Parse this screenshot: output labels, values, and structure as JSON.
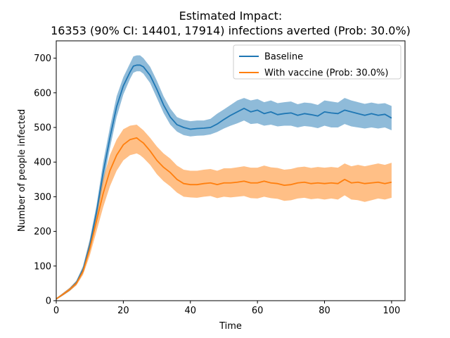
{
  "chart_data": {
    "type": "line",
    "title_line1": "Estimated Impact:",
    "title_line2": "16353 (90% CI: 14401, 17914) infections averted (Prob: 30.0%)",
    "xlabel": "Time",
    "ylabel": "Number of people infected",
    "xlim": [
      0,
      104
    ],
    "ylim": [
      0,
      750
    ],
    "xticks": [
      0,
      20,
      40,
      60,
      80,
      100
    ],
    "yticks": [
      0,
      100,
      200,
      300,
      400,
      500,
      600,
      700
    ],
    "legend_position": "top-right",
    "series": [
      {
        "name": "Baseline",
        "color": "#1f77b4",
        "band_color": "#1f77b4",
        "x": [
          0,
          2,
          4,
          6,
          8,
          10,
          12,
          14,
          16,
          18,
          20,
          22,
          23,
          24,
          25,
          26,
          28,
          30,
          32,
          34,
          36,
          38,
          40,
          42,
          44,
          46,
          48,
          50,
          52,
          54,
          56,
          58,
          60,
          62,
          64,
          66,
          68,
          70,
          72,
          74,
          76,
          78,
          80,
          82,
          84,
          86,
          88,
          90,
          92,
          94,
          96,
          98,
          100
        ],
        "values": [
          5,
          18,
          32,
          52,
          90,
          160,
          255,
          370,
          470,
          560,
          620,
          660,
          677,
          680,
          680,
          675,
          650,
          610,
          565,
          530,
          508,
          500,
          495,
          497,
          498,
          500,
          510,
          523,
          535,
          545,
          555,
          545,
          550,
          540,
          545,
          537,
          540,
          542,
          535,
          540,
          537,
          533,
          545,
          542,
          540,
          550,
          545,
          540,
          535,
          540,
          535,
          538,
          527
        ],
        "lower": [
          3,
          15,
          28,
          46,
          80,
          145,
          235,
          340,
          440,
          530,
          595,
          640,
          658,
          662,
          662,
          655,
          628,
          585,
          542,
          508,
          488,
          478,
          474,
          476,
          477,
          480,
          487,
          497,
          505,
          512,
          520,
          510,
          512,
          505,
          508,
          503,
          505,
          505,
          500,
          504,
          502,
          498,
          505,
          500,
          500,
          510,
          503,
          500,
          497,
          500,
          497,
          500,
          492
        ],
        "upper": [
          7,
          22,
          37,
          58,
          100,
          177,
          275,
          400,
          500,
          590,
          645,
          685,
          705,
          708,
          708,
          700,
          675,
          635,
          590,
          555,
          530,
          522,
          518,
          520,
          520,
          525,
          540,
          552,
          565,
          578,
          585,
          578,
          582,
          573,
          578,
          570,
          573,
          575,
          567,
          572,
          570,
          565,
          578,
          575,
          572,
          585,
          578,
          573,
          568,
          572,
          568,
          570,
          562
        ]
      },
      {
        "name": "With vaccine (Prob: 30.0%)",
        "color": "#ff7f0e",
        "band_color": "#ff7f0e",
        "x": [
          0,
          2,
          4,
          6,
          8,
          10,
          12,
          14,
          16,
          18,
          20,
          22,
          24,
          25,
          26,
          28,
          30,
          32,
          34,
          36,
          38,
          40,
          42,
          44,
          46,
          48,
          50,
          52,
          54,
          56,
          58,
          60,
          62,
          64,
          66,
          68,
          70,
          72,
          74,
          76,
          78,
          80,
          82,
          84,
          86,
          88,
          90,
          92,
          94,
          96,
          98,
          100
        ],
        "values": [
          5,
          18,
          32,
          50,
          85,
          150,
          230,
          310,
          375,
          420,
          450,
          465,
          470,
          462,
          455,
          432,
          405,
          385,
          370,
          350,
          338,
          335,
          335,
          338,
          340,
          335,
          340,
          340,
          342,
          345,
          340,
          340,
          345,
          340,
          338,
          333,
          335,
          340,
          342,
          338,
          340,
          338,
          340,
          338,
          350,
          340,
          342,
          338,
          340,
          342,
          338,
          342
        ],
        "lower": [
          3,
          15,
          28,
          44,
          75,
          130,
          200,
          270,
          330,
          375,
          405,
          420,
          425,
          420,
          412,
          392,
          365,
          345,
          330,
          312,
          300,
          298,
          297,
          300,
          302,
          296,
          300,
          298,
          300,
          302,
          296,
          295,
          300,
          296,
          294,
          288,
          290,
          295,
          297,
          293,
          295,
          292,
          295,
          292,
          304,
          292,
          290,
          285,
          290,
          295,
          292,
          297
        ],
        "upper": [
          7,
          22,
          37,
          56,
          96,
          172,
          262,
          352,
          420,
          465,
          495,
          505,
          508,
          500,
          492,
          470,
          445,
          425,
          410,
          390,
          378,
          375,
          375,
          378,
          380,
          375,
          382,
          382,
          385,
          388,
          384,
          384,
          390,
          385,
          383,
          378,
          380,
          385,
          387,
          383,
          386,
          384,
          386,
          384,
          396,
          388,
          392,
          388,
          392,
          396,
          392,
          398
        ]
      }
    ]
  }
}
